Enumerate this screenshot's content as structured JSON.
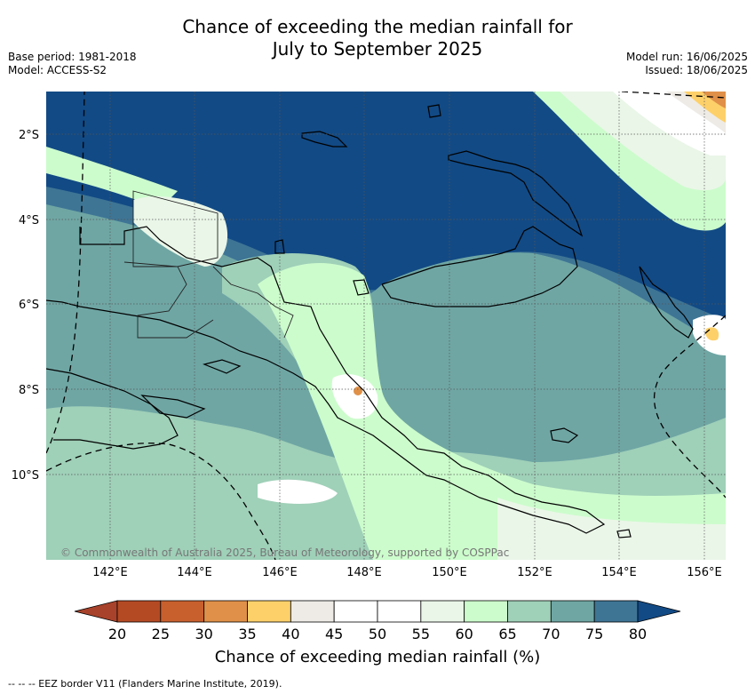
{
  "title": {
    "line1": "Chance of exceeding the median rainfall for",
    "line2": "July to September 2025"
  },
  "meta_left": {
    "base_period": "Base period: 1981-2018",
    "model": "Model: ACCESS-S2"
  },
  "meta_right": {
    "model_run": "Model run: 16/06/2025",
    "issued": "Issued: 18/06/2025"
  },
  "map": {
    "lon_ticks": [
      "142°E",
      "144°E",
      "146°E",
      "148°E",
      "150°E",
      "152°E",
      "154°E",
      "156°E"
    ],
    "lat_ticks": [
      "2°S",
      "4°S",
      "6°S",
      "8°S",
      "10°S"
    ],
    "copyright": "© Commonwealth of Australia 2025, Bureau of Meteorology, supported by COSPPac"
  },
  "colorbar": {
    "ticks": [
      "20",
      "25",
      "30",
      "35",
      "40",
      "45",
      "50",
      "55",
      "60",
      "65",
      "70",
      "75",
      "80"
    ],
    "colors": [
      "#a8422a",
      "#b44a24",
      "#c8602e",
      "#e09048",
      "#fdd06a",
      "#eeebe6",
      "#ffffff",
      "#ffffff",
      "#eaf6e8",
      "#ccfccc",
      "#9fd0b8",
      "#6fa6a4",
      "#3e7595",
      "#124a85"
    ],
    "label": "Chance of exceeding median rainfall (%)"
  },
  "footer": {
    "eez_note": "-- -- -- EEZ border V11 (Flanders Marine Institute, 2019)."
  }
}
